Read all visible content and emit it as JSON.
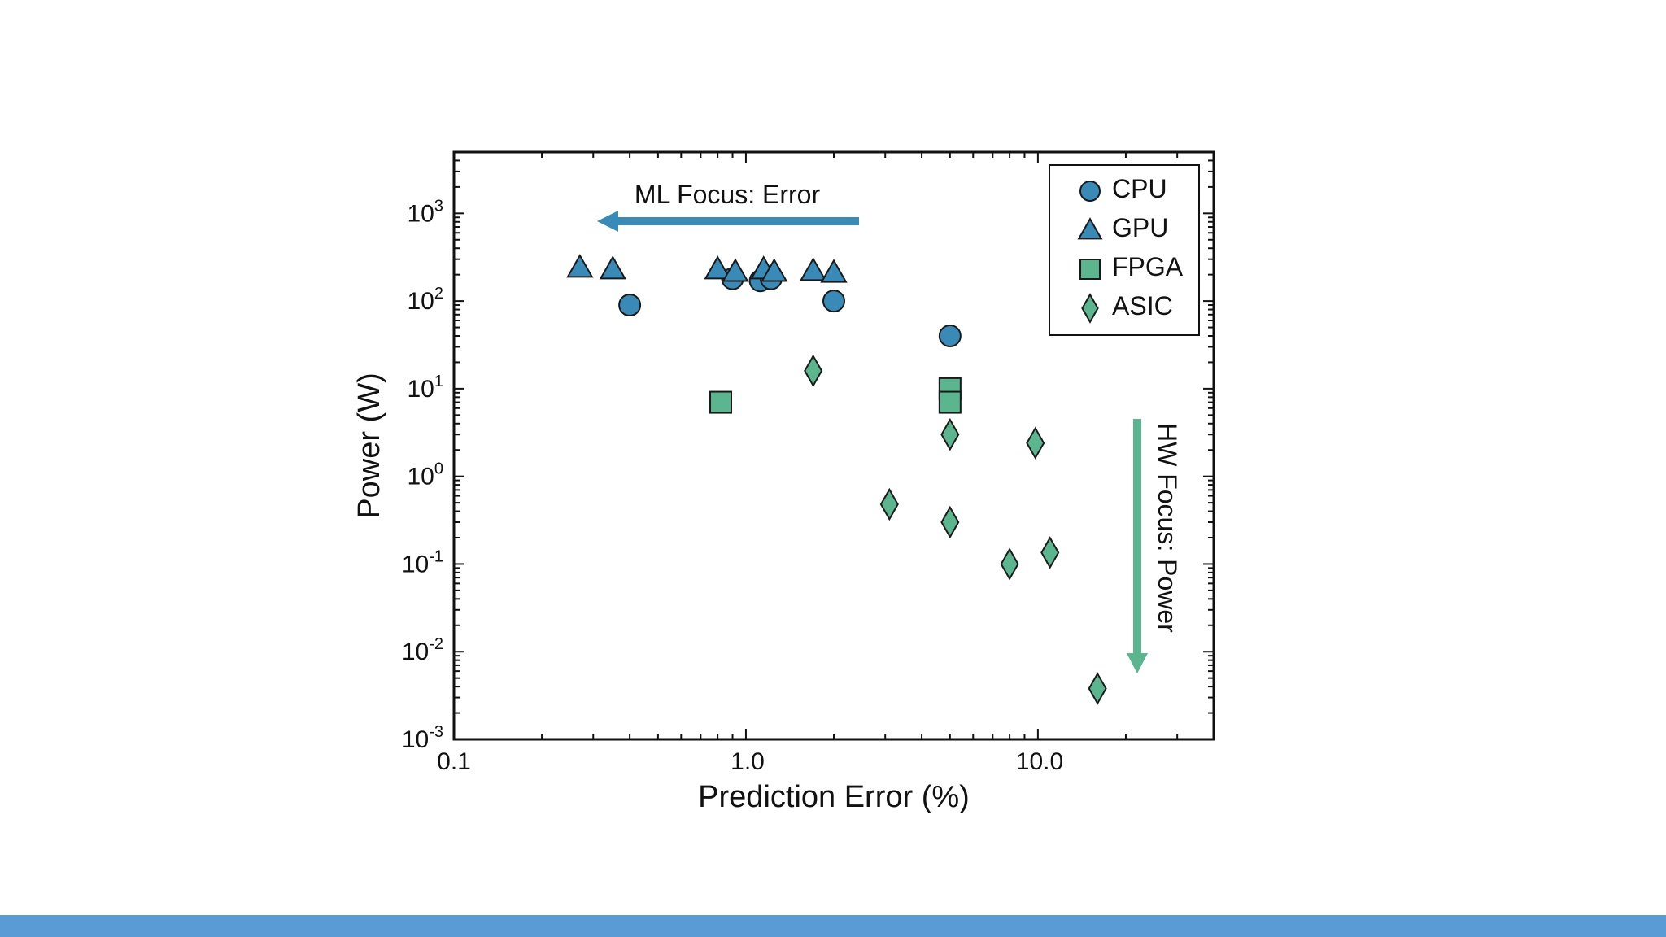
{
  "chart_data": {
    "type": "scatter",
    "xlabel": "Prediction Error (%)",
    "ylabel": "Power (W)",
    "x_scale": "log",
    "y_scale": "log",
    "xlim": [
      0.1,
      40
    ],
    "ylim": [
      0.001,
      5000
    ],
    "x_ticks": [
      {
        "value": 0.1,
        "label": "0.1"
      },
      {
        "value": 1.0,
        "label": "1.0"
      },
      {
        "value": 10.0,
        "label": "10.0"
      }
    ],
    "y_ticks": [
      {
        "value": 1000,
        "base": "10",
        "exp": "3"
      },
      {
        "value": 100,
        "base": "10",
        "exp": "2"
      },
      {
        "value": 10,
        "base": "10",
        "exp": "1"
      },
      {
        "value": 1,
        "base": "10",
        "exp": "0"
      },
      {
        "value": 0.1,
        "base": "10",
        "exp": "-1"
      },
      {
        "value": 0.01,
        "base": "10",
        "exp": "-2"
      },
      {
        "value": 0.001,
        "base": "10",
        "exp": "-3"
      }
    ],
    "legend_position": "top-right",
    "series": [
      {
        "name": "CPU",
        "marker": "circle",
        "color": "#3a8ab8",
        "points": [
          {
            "x": 0.4,
            "y": 90
          },
          {
            "x": 0.9,
            "y": 180
          },
          {
            "x": 1.12,
            "y": 170
          },
          {
            "x": 1.22,
            "y": 180
          },
          {
            "x": 2.0,
            "y": 100
          },
          {
            "x": 5.0,
            "y": 40
          }
        ]
      },
      {
        "name": "GPU",
        "marker": "triangle",
        "color": "#3a8ab8",
        "points": [
          {
            "x": 0.27,
            "y": 240
          },
          {
            "x": 0.35,
            "y": 230
          },
          {
            "x": 0.8,
            "y": 230
          },
          {
            "x": 0.92,
            "y": 215
          },
          {
            "x": 1.15,
            "y": 230
          },
          {
            "x": 1.25,
            "y": 215
          },
          {
            "x": 1.7,
            "y": 220
          },
          {
            "x": 2.0,
            "y": 210
          }
        ]
      },
      {
        "name": "FPGA",
        "marker": "square",
        "color": "#5bb58e",
        "points": [
          {
            "x": 0.82,
            "y": 7
          },
          {
            "x": 5.0,
            "y": 10
          },
          {
            "x": 5.0,
            "y": 7
          }
        ]
      },
      {
        "name": "ASIC",
        "marker": "diamond",
        "color": "#5bb58e",
        "points": [
          {
            "x": 1.7,
            "y": 16
          },
          {
            "x": 5.0,
            "y": 3.0
          },
          {
            "x": 9.8,
            "y": 2.4
          },
          {
            "x": 3.1,
            "y": 0.48
          },
          {
            "x": 5.0,
            "y": 0.3
          },
          {
            "x": 8.0,
            "y": 0.1
          },
          {
            "x": 11.0,
            "y": 0.135
          },
          {
            "x": 16.0,
            "y": 0.0038
          }
        ]
      }
    ],
    "annotations": [
      {
        "text": "ML Focus: Error",
        "direction": "left",
        "color": "#3a8ab8"
      },
      {
        "text": "HW Focus: Power",
        "direction": "down",
        "color": "#5bb58e"
      }
    ]
  },
  "colors": {
    "footer_bar": "#5b9bd5",
    "axis": "#111111"
  }
}
